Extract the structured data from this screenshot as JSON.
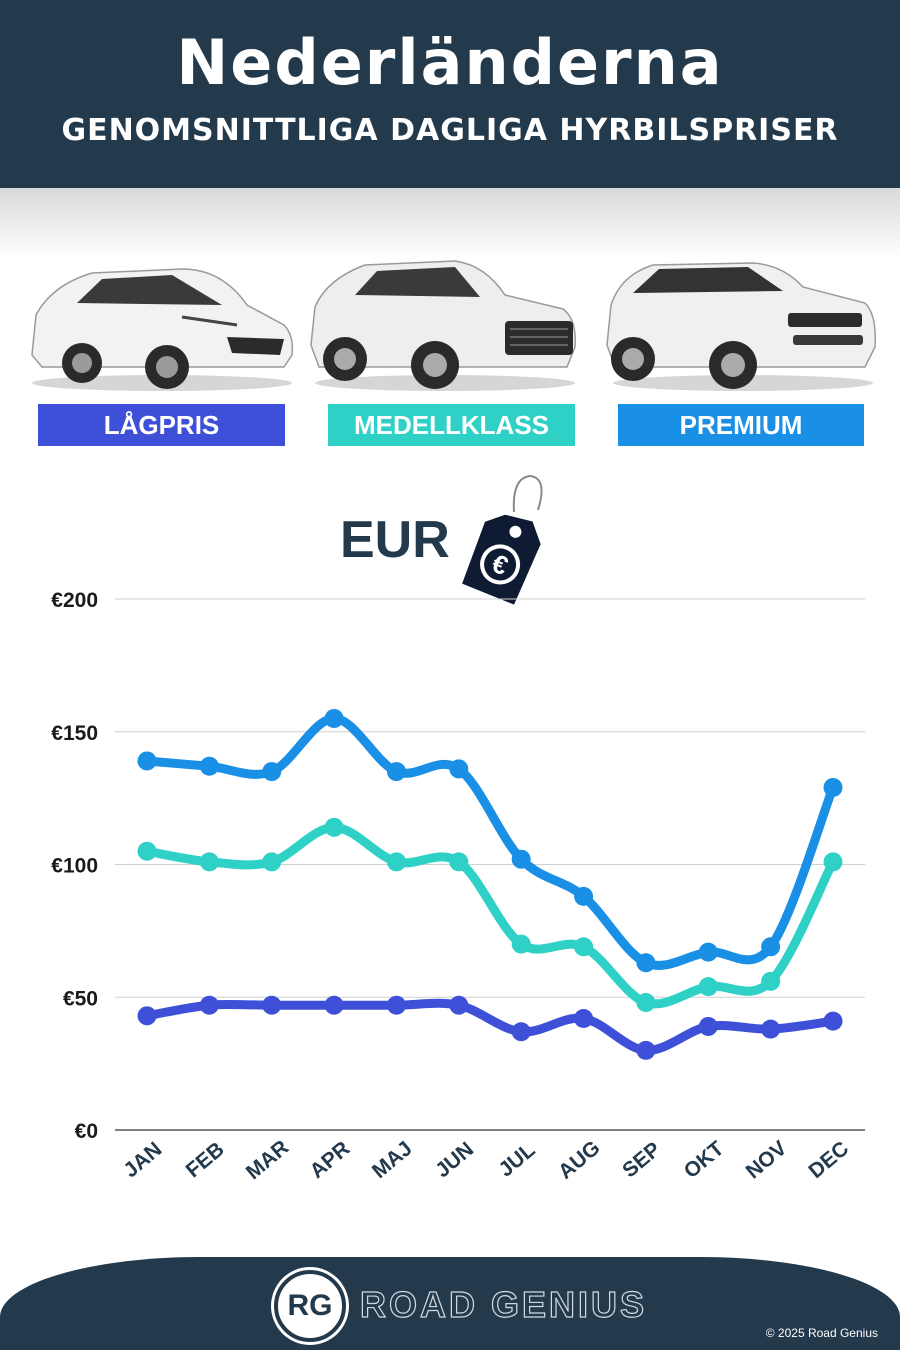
{
  "header": {
    "title": "Nederländerna",
    "subtitle": "GENOMSNITTLIGA DAGLIGA HYRBILSPRISER"
  },
  "categories": [
    {
      "label": "LÅGPRIS",
      "color": "#3f50d8"
    },
    {
      "label": "MEDELLKLASS",
      "color": "#2fd1c7"
    },
    {
      "label": "PREMIUM",
      "color": "#1a8fe6"
    }
  ],
  "currency": {
    "label": "EUR",
    "icon": "price-tag-euro-icon"
  },
  "chart_data": {
    "type": "line",
    "categories": [
      "JAN",
      "FEB",
      "MAR",
      "APR",
      "MAJ",
      "JUN",
      "JUL",
      "AUG",
      "SEP",
      "OKT",
      "NOV",
      "DEC"
    ],
    "series": [
      {
        "name": "PREMIUM",
        "color": "#1a8fe6",
        "values": [
          139,
          137,
          135,
          155,
          135,
          136,
          102,
          88,
          63,
          67,
          69,
          129
        ]
      },
      {
        "name": "MEDELLKLASS",
        "color": "#2fd1c7",
        "values": [
          105,
          101,
          101,
          114,
          101,
          101,
          70,
          69,
          48,
          54,
          56,
          101
        ]
      },
      {
        "name": "LÅGPRIS",
        "color": "#3f50d8",
        "values": [
          43,
          47,
          47,
          47,
          47,
          47,
          37,
          42,
          30,
          39,
          38,
          41
        ]
      }
    ],
    "ylim": [
      0,
      200
    ],
    "yticks": [
      0,
      50,
      100,
      150,
      200
    ],
    "ytick_labels": [
      "€0",
      "€50",
      "€100",
      "€150",
      "€200"
    ],
    "grid": true
  },
  "footer": {
    "logo_initials": "RG",
    "brand": "ROAD GENIUS",
    "copyright": "© 2025 Road Genius"
  }
}
